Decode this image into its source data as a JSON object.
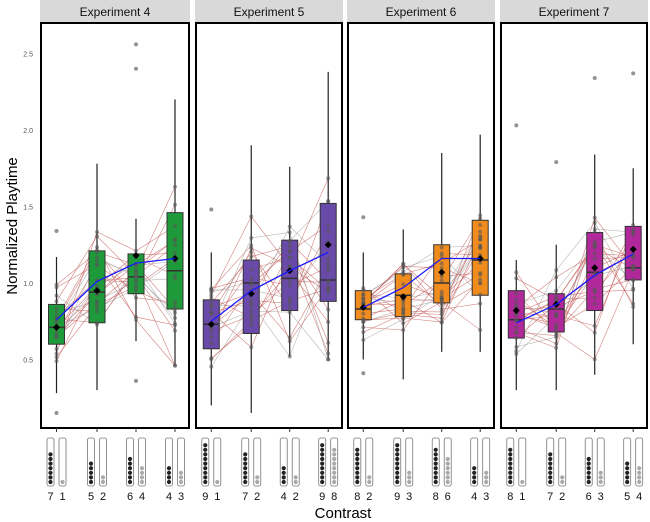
{
  "chart_data": {
    "type": "box",
    "ylabel": "Normalized Playtime",
    "xlabel": "Contrast",
    "ylim": [
      0.1,
      2.7
    ],
    "yticks": [
      "0.5",
      "1.0",
      "1.5",
      "2.0",
      "2.5"
    ],
    "grid": false,
    "panels": [
      {
        "title": "Experiment 4",
        "color": "#1f9a3a",
        "conditions": [
          {
            "dark": 7,
            "light": 1,
            "q1": 0.6,
            "median": 0.71,
            "q3": 0.86,
            "wlo": 0.28,
            "whi": 1.17,
            "outliers": [
              1.34,
              0.15
            ],
            "mean": 0.71,
            "trend": 0.76
          },
          {
            "dark": 5,
            "light": 2,
            "q1": 0.74,
            "median": 0.94,
            "q3": 1.21,
            "wlo": 0.3,
            "whi": 1.78,
            "outliers": [],
            "mean": 0.95,
            "trend": 1.01
          },
          {
            "dark": 6,
            "light": 4,
            "q1": 0.93,
            "median": 1.04,
            "q3": 1.19,
            "wlo": 0.62,
            "whi": 1.42,
            "outliers": [
              2.56,
              2.4,
              0.36
            ],
            "mean": 1.18,
            "trend": 1.13
          },
          {
            "dark": 4,
            "light": 3,
            "q1": 0.83,
            "median": 1.08,
            "q3": 1.46,
            "wlo": 0.46,
            "whi": 2.2,
            "outliers": [],
            "mean": 1.16,
            "trend": 1.16
          }
        ]
      },
      {
        "title": "Experiment 5",
        "color": "#6a4aa8",
        "conditions": [
          {
            "dark": 9,
            "light": 1,
            "q1": 0.57,
            "median": 0.73,
            "q3": 0.89,
            "wlo": 0.2,
            "whi": 1.2,
            "outliers": [
              1.48
            ],
            "mean": 0.73,
            "trend": 0.75
          },
          {
            "dark": 7,
            "light": 2,
            "q1": 0.67,
            "median": 1.0,
            "q3": 1.15,
            "wlo": 0.15,
            "whi": 1.9,
            "outliers": [],
            "mean": 0.93,
            "trend": 0.95
          },
          {
            "dark": 4,
            "light": 2,
            "q1": 0.82,
            "median": 1.03,
            "q3": 1.28,
            "wlo": 0.52,
            "whi": 1.76,
            "outliers": [],
            "mean": 1.08,
            "trend": 1.08
          },
          {
            "dark": 9,
            "light": 8,
            "q1": 0.88,
            "median": 1.02,
            "q3": 1.52,
            "wlo": 0.5,
            "whi": 2.38,
            "outliers": [],
            "mean": 1.25,
            "trend": 1.2
          }
        ]
      },
      {
        "title": "Experiment 6",
        "color": "#f08c1e",
        "conditions": [
          {
            "dark": 8,
            "light": 2,
            "q1": 0.76,
            "median": 0.83,
            "q3": 0.95,
            "wlo": 0.5,
            "whi": 1.2,
            "outliers": [
              1.43,
              0.41
            ],
            "mean": 0.84,
            "trend": 0.84
          },
          {
            "dark": 9,
            "light": 3,
            "q1": 0.78,
            "median": 0.92,
            "q3": 1.06,
            "wlo": 0.37,
            "whi": 1.35,
            "outliers": [],
            "mean": 0.91,
            "trend": 0.97
          },
          {
            "dark": 8,
            "light": 6,
            "q1": 0.87,
            "median": 1.0,
            "q3": 1.25,
            "wlo": 0.55,
            "whi": 1.85,
            "outliers": [],
            "mean": 1.07,
            "trend": 1.16
          },
          {
            "dark": 4,
            "light": 3,
            "q1": 0.92,
            "median": 1.15,
            "q3": 1.41,
            "wlo": 0.55,
            "whi": 1.97,
            "outliers": [],
            "mean": 1.16,
            "trend": 1.16
          }
        ]
      },
      {
        "title": "Experiment 7",
        "color": "#b0289a",
        "conditions": [
          {
            "dark": 8,
            "light": 1,
            "q1": 0.64,
            "median": 0.76,
            "q3": 0.95,
            "wlo": 0.3,
            "whi": 1.15,
            "outliers": [
              2.03
            ],
            "mean": 0.82,
            "trend": 0.74
          },
          {
            "dark": 7,
            "light": 2,
            "q1": 0.68,
            "median": 0.83,
            "q3": 0.93,
            "wlo": 0.3,
            "whi": 1.25,
            "outliers": [
              1.79
            ],
            "mean": 0.86,
            "trend": 0.86
          },
          {
            "dark": 6,
            "light": 3,
            "q1": 0.82,
            "median": 1.07,
            "q3": 1.33,
            "wlo": 0.4,
            "whi": 1.84,
            "outliers": [
              2.34
            ],
            "mean": 1.1,
            "trend": 1.05
          },
          {
            "dark": 5,
            "light": 4,
            "q1": 1.02,
            "median": 1.1,
            "q3": 1.37,
            "wlo": 0.6,
            "whi": 1.75,
            "outliers": [
              2.37
            ],
            "mean": 1.22,
            "trend": 1.19
          }
        ]
      }
    ]
  }
}
